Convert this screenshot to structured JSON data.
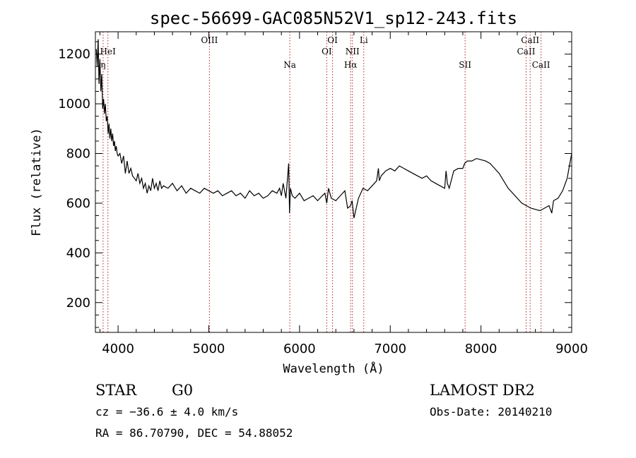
{
  "chart_data": {
    "type": "line",
    "title": "spec-56699-GAC085N52V1_sp12-243.fits",
    "xlabel": "Wavelength (Å)",
    "ylabel": "Flux (relative)",
    "xlim": [
      3750,
      9000
    ],
    "ylim": [
      80,
      1290
    ],
    "x_ticks": [
      4000,
      5000,
      6000,
      7000,
      8000,
      9000
    ],
    "y_ticks": [
      200,
      400,
      600,
      800,
      1000,
      1200
    ],
    "grid": false,
    "series": [
      {
        "x": [
          3760,
          3770,
          3780,
          3790,
          3800,
          3810,
          3820,
          3830,
          3840,
          3850,
          3860,
          3870,
          3880,
          3890,
          3900,
          3910,
          3920,
          3930,
          3940,
          3950,
          3960,
          3970,
          3980,
          3990,
          4000,
          4020,
          4040,
          4060,
          4080,
          4100,
          4120,
          4140,
          4160,
          4180,
          4200,
          4220,
          4240,
          4260,
          4280,
          4300,
          4320,
          4340,
          4360,
          4380,
          4400,
          4420,
          4440,
          4460,
          4480,
          4500,
          4550,
          4600,
          4650,
          4700,
          4750,
          4800,
          4850,
          4900,
          4950,
          5000,
          5050,
          5100,
          5150,
          5200,
          5250,
          5300,
          5350,
          5400,
          5450,
          5500,
          5550,
          5600,
          5650,
          5700,
          5750,
          5780,
          5800,
          5820,
          5850,
          5880,
          5890,
          5900,
          5920,
          5950,
          6000,
          6050,
          6100,
          6150,
          6200,
          6250,
          6280,
          6300,
          6320,
          6350,
          6400,
          6450,
          6500,
          6530,
          6563,
          6580,
          6600,
          6650,
          6700,
          6750,
          6800,
          6850,
          6870,
          6880,
          6900,
          6950,
          7000,
          7050,
          7100,
          7150,
          7200,
          7250,
          7300,
          7350,
          7400,
          7450,
          7500,
          7550,
          7600,
          7615,
          7630,
          7650,
          7700,
          7750,
          7800,
          7820,
          7850,
          7900,
          7950,
          8000,
          8050,
          8100,
          8150,
          8200,
          8250,
          8300,
          8350,
          8400,
          8450,
          8500,
          8550,
          8600,
          8650,
          8700,
          8750,
          8780,
          8800,
          8850,
          8900,
          8950,
          8980,
          9000
        ],
        "y": [
          1220,
          1150,
          1260,
          1080,
          1180,
          1050,
          1120,
          980,
          1020,
          960,
          1000,
          930,
          950,
          880,
          920,
          860,
          900,
          850,
          880,
          830,
          850,
          810,
          830,
          800,
          790,
          800,
          760,
          790,
          720,
          770,
          720,
          740,
          710,
          700,
          690,
          720,
          680,
          700,
          660,
          680,
          640,
          670,
          650,
          700,
          660,
          680,
          650,
          690,
          660,
          670,
          660,
          680,
          650,
          670,
          640,
          660,
          650,
          640,
          660,
          650,
          640,
          650,
          630,
          640,
          650,
          630,
          640,
          620,
          650,
          630,
          640,
          620,
          630,
          650,
          640,
          660,
          630,
          680,
          620,
          760,
          560,
          660,
          630,
          620,
          640,
          610,
          620,
          630,
          610,
          630,
          640,
          600,
          660,
          620,
          610,
          630,
          650,
          580,
          590,
          610,
          540,
          620,
          660,
          650,
          670,
          690,
          740,
          690,
          710,
          730,
          740,
          730,
          750,
          740,
          730,
          720,
          710,
          700,
          710,
          690,
          680,
          670,
          660,
          730,
          680,
          660,
          730,
          740,
          740,
          760,
          770,
          770,
          780,
          775,
          770,
          760,
          740,
          720,
          690,
          660,
          640,
          620,
          600,
          590,
          580,
          575,
          570,
          580,
          590,
          560,
          610,
          620,
          650,
          700,
          760,
          800
        ]
      }
    ],
    "line_markers": [
      {
        "label": "HeI",
        "x": 3888,
        "row": 2
      },
      {
        "label": "η",
        "x": 3835,
        "row": 3
      },
      {
        "label": "OIII",
        "x": 5007,
        "row": 1
      },
      {
        "label": "Na",
        "x": 5893,
        "row": 3
      },
      {
        "label": "OI",
        "x": 6300,
        "row": 2
      },
      {
        "label": "OI",
        "x": 6364,
        "row": 1
      },
      {
        "label": "NII",
        "x": 6583,
        "row": 2
      },
      {
        "label": "Hα",
        "x": 6563,
        "row": 3
      },
      {
        "label": "Li",
        "x": 6708,
        "row": 1
      },
      {
        "label": "SII",
        "x": 7825,
        "row": 3
      },
      {
        "label": "CaII",
        "x": 8498,
        "row": 2
      },
      {
        "label": "CaII",
        "x": 8542,
        "row": 1
      },
      {
        "label": "CaII",
        "x": 8662,
        "row": 3
      }
    ]
  },
  "info": {
    "class_label": "STAR",
    "subclass_label": "G0",
    "survey": "LAMOST DR2",
    "cz": "cz = −36.6 ± 4.0 km/s",
    "obs_date": "Obs-Date: 20140210",
    "coords": "RA =  86.70790, DEC =  54.88052"
  }
}
